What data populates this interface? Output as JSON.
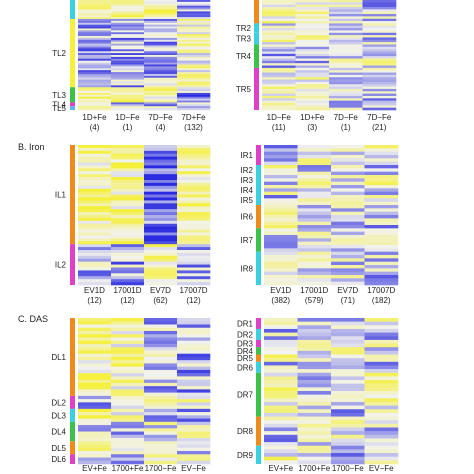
{
  "colors": {
    "low": "#2a2ae0",
    "mid": "#f2f2ee",
    "high": "#f5f03a",
    "cluster_palette": [
      "#3ad0e0",
      "#f08a1a",
      "#3cc24a",
      "#e040c8",
      "#5ab4f0"
    ]
  },
  "chart_data": [
    {
      "type": "heatmap",
      "section": "",
      "title": "",
      "columns": [
        {
          "label": "1D+Fe",
          "count": "(4)"
        },
        {
          "label": "1D−Fe",
          "count": "(1)"
        },
        {
          "label": "7D−Fe",
          "count": "(4)"
        },
        {
          "label": "7D+Fe",
          "count": "(132)"
        }
      ],
      "clusters": [
        {
          "name": "",
          "rows": 10,
          "color": "#3ad0e0"
        },
        {
          "name": "TL2",
          "rows": 36,
          "color": "#f5f03a"
        },
        {
          "name": "TL3",
          "rows": 8,
          "color": "#3cc24a"
        },
        {
          "name": "TL4",
          "rows": 2,
          "color": "#e040c8"
        },
        {
          "name": "TL5",
          "rows": 2,
          "color": "#5ab4f0"
        }
      ],
      "column_bias": [
        0.55,
        0.55,
        0.45,
        -0.45
      ]
    },
    {
      "type": "heatmap",
      "section": "",
      "title": "",
      "columns": [
        {
          "label": "1D−Fe",
          "count": "(11)"
        },
        {
          "label": "1D+Fe",
          "count": "(3)"
        },
        {
          "label": "7D−Fe",
          "count": "(1)"
        },
        {
          "label": "7D−Fe",
          "count": "(21)"
        }
      ],
      "clusters": [
        {
          "name": "",
          "rows": 10,
          "color": "#f08a1a"
        },
        {
          "name": "TR2",
          "rows": 4,
          "color": "#3ad0e0"
        },
        {
          "name": "TR3",
          "rows": 5,
          "color": "#3ad0e0"
        },
        {
          "name": "TR4",
          "rows": 10,
          "color": "#3cc24a"
        },
        {
          "name": "TR5",
          "rows": 18,
          "color": "#e040c8"
        }
      ],
      "column_bias": [
        0.3,
        0.2,
        0.0,
        -0.2
      ]
    },
    {
      "type": "heatmap",
      "section": "B. Iron",
      "title": "",
      "columns": [
        {
          "label": "EV1D",
          "count": "(12)"
        },
        {
          "label": "17001D",
          "count": "(12)"
        },
        {
          "label": "EV7D",
          "count": "(62)"
        },
        {
          "label": "17007D",
          "count": "(12)"
        }
      ],
      "clusters": [
        {
          "name": "IL1",
          "rows": 34,
          "color": "#f08a1a"
        },
        {
          "name": "IL2",
          "rows": 14,
          "color": "#e040c8"
        }
      ],
      "column_bias": [
        0.5,
        0.5,
        -0.7,
        0.5
      ]
    },
    {
      "type": "heatmap",
      "section": "",
      "title": "",
      "columns": [
        {
          "label": "EV1D",
          "count": "(382)"
        },
        {
          "label": "17001D",
          "count": "(579)"
        },
        {
          "label": "EV7D",
          "count": "(71)"
        },
        {
          "label": "17007D",
          "count": "(182)"
        }
      ],
      "clusters": [
        {
          "name": "IR1",
          "rows": 6,
          "color": "#e040c8"
        },
        {
          "name": "IR2",
          "rows": 3,
          "color": "#3ad0e0"
        },
        {
          "name": "IR3",
          "rows": 3,
          "color": "#3ad0e0"
        },
        {
          "name": "IR4",
          "rows": 3,
          "color": "#3ad0e0"
        },
        {
          "name": "IR5",
          "rows": 3,
          "color": "#3ad0e0"
        },
        {
          "name": "IR6",
          "rows": 7,
          "color": "#f08a1a"
        },
        {
          "name": "IR7",
          "rows": 7,
          "color": "#3cc24a"
        },
        {
          "name": "IR8",
          "rows": 10,
          "color": "#3ad0e0"
        }
      ],
      "column_bias": [
        -0.3,
        0.2,
        0.1,
        0.3
      ]
    },
    {
      "type": "heatmap",
      "section": "C. DAS",
      "title": "",
      "columns": [
        {
          "label": "EV+Fe",
          "count": ""
        },
        {
          "label": "1700+Fe",
          "count": ""
        },
        {
          "label": "1700−Fe",
          "count": ""
        },
        {
          "label": "EV−Fe",
          "count": ""
        }
      ],
      "clusters": [
        {
          "name": "DL1",
          "rows": 24,
          "color": "#f08a1a"
        },
        {
          "name": "DL2",
          "rows": 4,
          "color": "#e040c8"
        },
        {
          "name": "DL3",
          "rows": 4,
          "color": "#3ad0e0"
        },
        {
          "name": "DL4",
          "rows": 6,
          "color": "#3cc24a"
        },
        {
          "name": "DL5",
          "rows": 4,
          "color": "#f08a1a"
        },
        {
          "name": "DL6",
          "rows": 3,
          "color": "#e040c8"
        }
      ],
      "column_bias": [
        0.5,
        0.4,
        -0.2,
        -0.3
      ]
    },
    {
      "type": "heatmap",
      "section": "",
      "title": "",
      "columns": [
        {
          "label": "EV+Fe",
          "count": ""
        },
        {
          "label": "1700+Fe",
          "count": ""
        },
        {
          "label": "1700−Fe",
          "count": ""
        },
        {
          "label": "EV−Fe",
          "count": ""
        }
      ],
      "clusters": [
        {
          "name": "DR1",
          "rows": 3,
          "color": "#e040c8"
        },
        {
          "name": "DR2",
          "rows": 3,
          "color": "#3ad0e0"
        },
        {
          "name": "DR3",
          "rows": 2,
          "color": "#e040c8"
        },
        {
          "name": "DR4",
          "rows": 2,
          "color": "#3cc24a"
        },
        {
          "name": "DR5",
          "rows": 2,
          "color": "#f08a1a"
        },
        {
          "name": "DR6",
          "rows": 3,
          "color": "#3ad0e0"
        },
        {
          "name": "DR7",
          "rows": 12,
          "color": "#3cc24a"
        },
        {
          "name": "DR8",
          "rows": 8,
          "color": "#f08a1a"
        },
        {
          "name": "DR9",
          "rows": 5,
          "color": "#3ad0e0"
        }
      ],
      "column_bias": [
        0.3,
        0.0,
        -0.2,
        0.3
      ]
    }
  ]
}
